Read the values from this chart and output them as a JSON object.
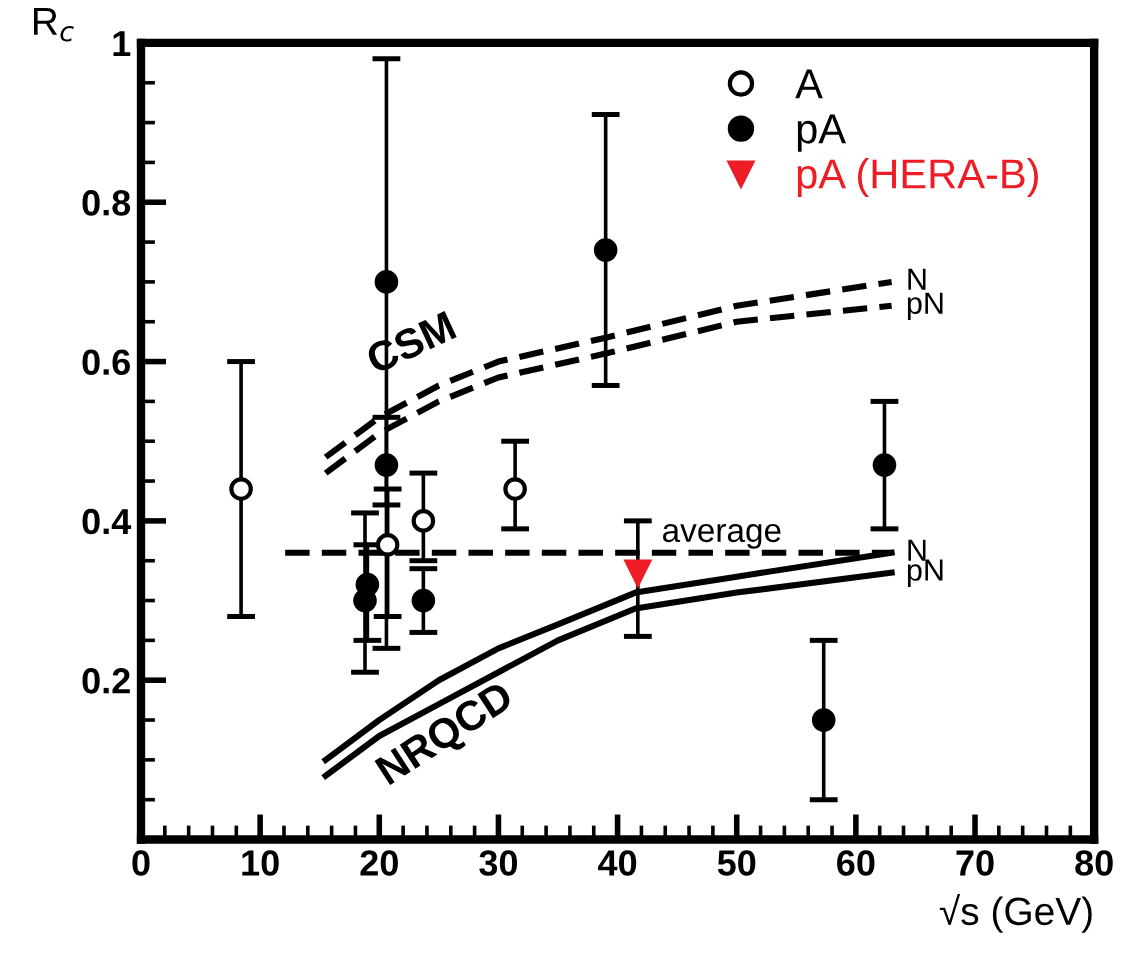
{
  "chart_data": {
    "type": "scatter",
    "xlabel": "√s (GeV)",
    "ylabel": "R$_{c}$",
    "xlim": [
      0,
      80
    ],
    "xticks": [
      0,
      10,
      20,
      30,
      40,
      50,
      60,
      70,
      80
    ],
    "ylim": [
      0,
      1
    ],
    "yticks": [
      0.2,
      0.4,
      0.6,
      0.8,
      1
    ],
    "grid": false,
    "legend": "top right",
    "series": [
      {
        "name": "A",
        "marker": "circle",
        "color": "#000000",
        "x": [
          8.4,
          20.7,
          23.7,
          31.4
        ],
        "values": [
          0.44,
          0.37,
          0.4,
          0.44
        ],
        "errors": [
          [
            0.28,
            0.6
          ],
          [
            0.28,
            0.44
          ],
          [
            0.35,
            0.46
          ],
          [
            0.39,
            0.5
          ]
        ]
      },
      {
        "name": "pA",
        "marker": "circle",
        "color": "#000000",
        "x": [
          18.8,
          19.0,
          20.6,
          20.6,
          23.7,
          39.0,
          57.3,
          62.4
        ],
        "values": [
          0.3,
          0.32,
          0.7,
          0.47,
          0.3,
          0.74,
          0.15,
          0.47
        ],
        "errors": [
          [
            0.21,
            0.41
          ],
          [
            0.25,
            0.37
          ],
          [
            0.42,
            0.98
          ],
          [
            0.24,
            0.53
          ],
          [
            0.26,
            0.34
          ],
          [
            0.57,
            0.91
          ],
          [
            0.05,
            0.25
          ],
          [
            0.39,
            0.55
          ]
        ]
      },
      {
        "name": "pA (HERA-B)",
        "marker": "triangle",
        "color": "#ee1c25",
        "x": [
          41.7
        ],
        "values": [
          0.335
        ],
        "errors": [
          [
            0.255,
            0.4
          ]
        ]
      },
      {
        "name": "average",
        "type": "line",
        "line_style": "dashed",
        "color": "#000000",
        "x": [
          12.1,
          63
        ],
        "values": [
          0.36,
          0.36
        ]
      },
      {
        "name": "N",
        "type": "line",
        "line_style": "dashed",
        "color": "#000000",
        "x": [
          15.5,
          20,
          25,
          30,
          39,
          50,
          63
        ],
        "values": [
          0.48,
          0.53,
          0.57,
          0.6,
          0.63,
          0.67,
          0.7
        ]
      },
      {
        "name": "pN",
        "type": "line",
        "line_style": "dashed",
        "color": "#000000",
        "x": [
          15.5,
          20,
          25,
          30,
          39,
          50,
          63
        ],
        "values": [
          0.46,
          0.51,
          0.55,
          0.58,
          0.61,
          0.65,
          0.67
        ]
      },
      {
        "name": "N",
        "type": "line",
        "line_style": "solid",
        "color": "#000000",
        "x": [
          15.5,
          20,
          25,
          30,
          35,
          41.5,
          50,
          63
        ],
        "values": [
          0.1,
          0.15,
          0.2,
          0.24,
          0.27,
          0.31,
          0.33,
          0.36
        ]
      },
      {
        "name": "pN",
        "type": "line",
        "line_style": "solid",
        "color": "#000000",
        "x": [
          15.5,
          20,
          25,
          30,
          35,
          41.5,
          50,
          63
        ],
        "values": [
          0.08,
          0.13,
          0.17,
          0.21,
          0.25,
          0.29,
          0.31,
          0.335
        ]
      }
    ],
    "annotations": [
      "CSM",
      "NRQCD"
    ]
  }
}
